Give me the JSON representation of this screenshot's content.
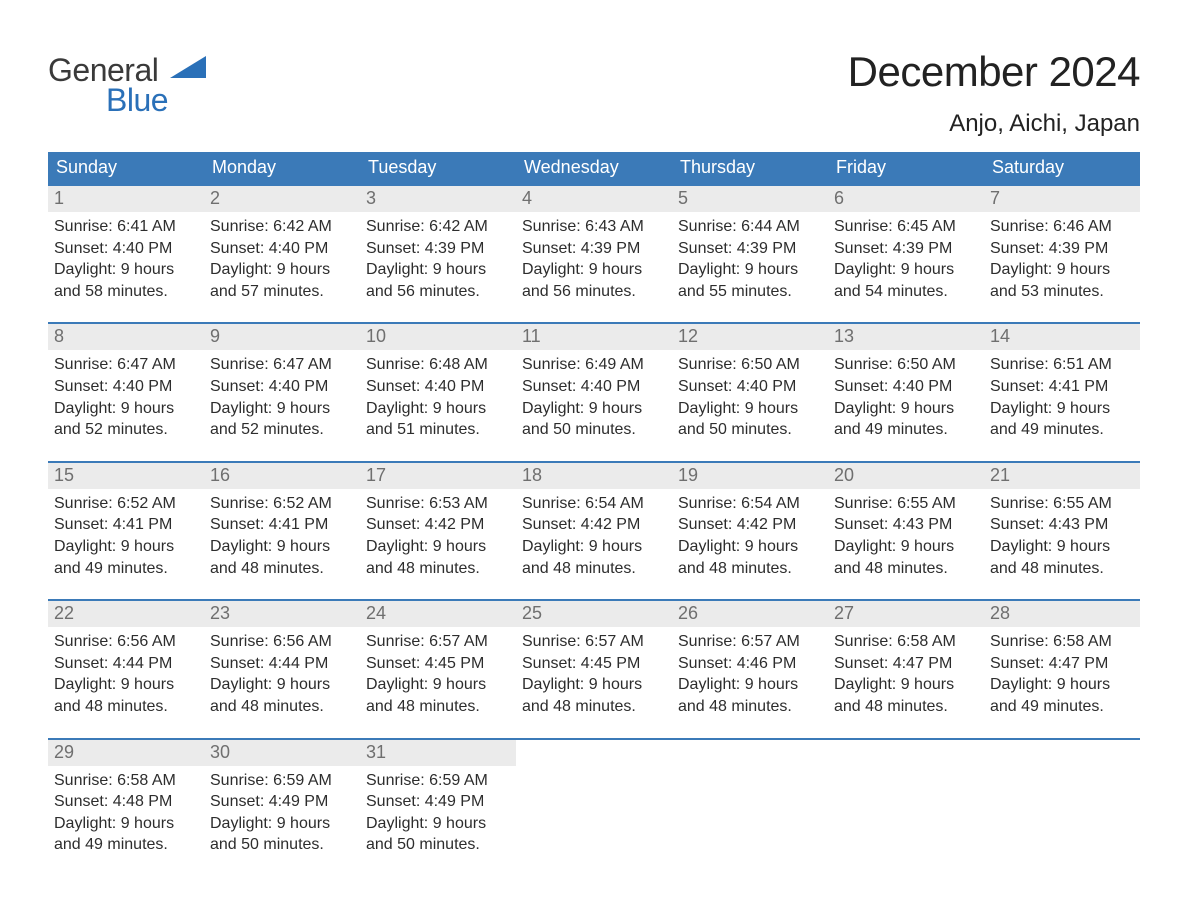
{
  "brand": {
    "line1": "General",
    "line2": "Blue",
    "accent_color": "#2a70b8"
  },
  "title": "December 2024",
  "location": "Anjo, Aichi, Japan",
  "colors": {
    "header_bg": "#3b7ab8",
    "header_text": "#ffffff",
    "week_border": "#3b7ab8",
    "daynum_bg": "#ebebeb",
    "daynum_text": "#6f6f6f",
    "body_text": "#2d2d2d",
    "page_bg": "#ffffff"
  },
  "typography": {
    "month_title_fontsize": 42,
    "location_fontsize": 24,
    "dow_fontsize": 18,
    "daynum_fontsize": 18,
    "body_fontsize": 16
  },
  "days_of_week": [
    "Sunday",
    "Monday",
    "Tuesday",
    "Wednesday",
    "Thursday",
    "Friday",
    "Saturday"
  ],
  "weeks": [
    [
      {
        "n": "1",
        "sunrise": "Sunrise: 6:41 AM",
        "sunset": "Sunset: 4:40 PM",
        "d1": "Daylight: 9 hours",
        "d2": "and 58 minutes."
      },
      {
        "n": "2",
        "sunrise": "Sunrise: 6:42 AM",
        "sunset": "Sunset: 4:40 PM",
        "d1": "Daylight: 9 hours",
        "d2": "and 57 minutes."
      },
      {
        "n": "3",
        "sunrise": "Sunrise: 6:42 AM",
        "sunset": "Sunset: 4:39 PM",
        "d1": "Daylight: 9 hours",
        "d2": "and 56 minutes."
      },
      {
        "n": "4",
        "sunrise": "Sunrise: 6:43 AM",
        "sunset": "Sunset: 4:39 PM",
        "d1": "Daylight: 9 hours",
        "d2": "and 56 minutes."
      },
      {
        "n": "5",
        "sunrise": "Sunrise: 6:44 AM",
        "sunset": "Sunset: 4:39 PM",
        "d1": "Daylight: 9 hours",
        "d2": "and 55 minutes."
      },
      {
        "n": "6",
        "sunrise": "Sunrise: 6:45 AM",
        "sunset": "Sunset: 4:39 PM",
        "d1": "Daylight: 9 hours",
        "d2": "and 54 minutes."
      },
      {
        "n": "7",
        "sunrise": "Sunrise: 6:46 AM",
        "sunset": "Sunset: 4:39 PM",
        "d1": "Daylight: 9 hours",
        "d2": "and 53 minutes."
      }
    ],
    [
      {
        "n": "8",
        "sunrise": "Sunrise: 6:47 AM",
        "sunset": "Sunset: 4:40 PM",
        "d1": "Daylight: 9 hours",
        "d2": "and 52 minutes."
      },
      {
        "n": "9",
        "sunrise": "Sunrise: 6:47 AM",
        "sunset": "Sunset: 4:40 PM",
        "d1": "Daylight: 9 hours",
        "d2": "and 52 minutes."
      },
      {
        "n": "10",
        "sunrise": "Sunrise: 6:48 AM",
        "sunset": "Sunset: 4:40 PM",
        "d1": "Daylight: 9 hours",
        "d2": "and 51 minutes."
      },
      {
        "n": "11",
        "sunrise": "Sunrise: 6:49 AM",
        "sunset": "Sunset: 4:40 PM",
        "d1": "Daylight: 9 hours",
        "d2": "and 50 minutes."
      },
      {
        "n": "12",
        "sunrise": "Sunrise: 6:50 AM",
        "sunset": "Sunset: 4:40 PM",
        "d1": "Daylight: 9 hours",
        "d2": "and 50 minutes."
      },
      {
        "n": "13",
        "sunrise": "Sunrise: 6:50 AM",
        "sunset": "Sunset: 4:40 PM",
        "d1": "Daylight: 9 hours",
        "d2": "and 49 minutes."
      },
      {
        "n": "14",
        "sunrise": "Sunrise: 6:51 AM",
        "sunset": "Sunset: 4:41 PM",
        "d1": "Daylight: 9 hours",
        "d2": "and 49 minutes."
      }
    ],
    [
      {
        "n": "15",
        "sunrise": "Sunrise: 6:52 AM",
        "sunset": "Sunset: 4:41 PM",
        "d1": "Daylight: 9 hours",
        "d2": "and 49 minutes."
      },
      {
        "n": "16",
        "sunrise": "Sunrise: 6:52 AM",
        "sunset": "Sunset: 4:41 PM",
        "d1": "Daylight: 9 hours",
        "d2": "and 48 minutes."
      },
      {
        "n": "17",
        "sunrise": "Sunrise: 6:53 AM",
        "sunset": "Sunset: 4:42 PM",
        "d1": "Daylight: 9 hours",
        "d2": "and 48 minutes."
      },
      {
        "n": "18",
        "sunrise": "Sunrise: 6:54 AM",
        "sunset": "Sunset: 4:42 PM",
        "d1": "Daylight: 9 hours",
        "d2": "and 48 minutes."
      },
      {
        "n": "19",
        "sunrise": "Sunrise: 6:54 AM",
        "sunset": "Sunset: 4:42 PM",
        "d1": "Daylight: 9 hours",
        "d2": "and 48 minutes."
      },
      {
        "n": "20",
        "sunrise": "Sunrise: 6:55 AM",
        "sunset": "Sunset: 4:43 PM",
        "d1": "Daylight: 9 hours",
        "d2": "and 48 minutes."
      },
      {
        "n": "21",
        "sunrise": "Sunrise: 6:55 AM",
        "sunset": "Sunset: 4:43 PM",
        "d1": "Daylight: 9 hours",
        "d2": "and 48 minutes."
      }
    ],
    [
      {
        "n": "22",
        "sunrise": "Sunrise: 6:56 AM",
        "sunset": "Sunset: 4:44 PM",
        "d1": "Daylight: 9 hours",
        "d2": "and 48 minutes."
      },
      {
        "n": "23",
        "sunrise": "Sunrise: 6:56 AM",
        "sunset": "Sunset: 4:44 PM",
        "d1": "Daylight: 9 hours",
        "d2": "and 48 minutes."
      },
      {
        "n": "24",
        "sunrise": "Sunrise: 6:57 AM",
        "sunset": "Sunset: 4:45 PM",
        "d1": "Daylight: 9 hours",
        "d2": "and 48 minutes."
      },
      {
        "n": "25",
        "sunrise": "Sunrise: 6:57 AM",
        "sunset": "Sunset: 4:45 PM",
        "d1": "Daylight: 9 hours",
        "d2": "and 48 minutes."
      },
      {
        "n": "26",
        "sunrise": "Sunrise: 6:57 AM",
        "sunset": "Sunset: 4:46 PM",
        "d1": "Daylight: 9 hours",
        "d2": "and 48 minutes."
      },
      {
        "n": "27",
        "sunrise": "Sunrise: 6:58 AM",
        "sunset": "Sunset: 4:47 PM",
        "d1": "Daylight: 9 hours",
        "d2": "and 48 minutes."
      },
      {
        "n": "28",
        "sunrise": "Sunrise: 6:58 AM",
        "sunset": "Sunset: 4:47 PM",
        "d1": "Daylight: 9 hours",
        "d2": "and 49 minutes."
      }
    ],
    [
      {
        "n": "29",
        "sunrise": "Sunrise: 6:58 AM",
        "sunset": "Sunset: 4:48 PM",
        "d1": "Daylight: 9 hours",
        "d2": "and 49 minutes."
      },
      {
        "n": "30",
        "sunrise": "Sunrise: 6:59 AM",
        "sunset": "Sunset: 4:49 PM",
        "d1": "Daylight: 9 hours",
        "d2": "and 50 minutes."
      },
      {
        "n": "31",
        "sunrise": "Sunrise: 6:59 AM",
        "sunset": "Sunset: 4:49 PM",
        "d1": "Daylight: 9 hours",
        "d2": "and 50 minutes."
      },
      null,
      null,
      null,
      null
    ]
  ]
}
